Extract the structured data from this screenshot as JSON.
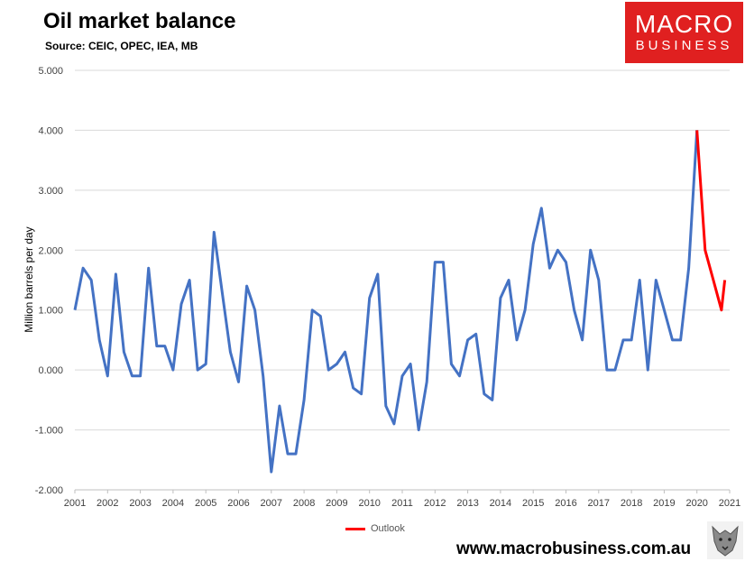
{
  "header": {
    "title": "Oil market balance",
    "subtitle": "Source: CEIC, OPEC, IEA, MB"
  },
  "logo": {
    "line1": "MACRO",
    "line2": "BUSINESS",
    "color": "#e02020"
  },
  "footer": {
    "url": "www.macrobusiness.com.au"
  },
  "chart_data": {
    "type": "line",
    "title": "Oil market balance",
    "ylabel": "Million barrels per day",
    "xlabel": "",
    "ylim": [
      -2,
      5
    ],
    "xlim": [
      2001,
      2021
    ],
    "yticks": [
      "-2.000",
      "-1.000",
      "0.000",
      "1.000",
      "2.000",
      "3.000",
      "4.000",
      "5.000"
    ],
    "xticks": [
      "2001",
      "2002",
      "2003",
      "2004",
      "2005",
      "2006",
      "2007",
      "2008",
      "2009",
      "2010",
      "2011",
      "2012",
      "2013",
      "2014",
      "2015",
      "2016",
      "2017",
      "2018",
      "2019",
      "2020",
      "2021"
    ],
    "grid": true,
    "legend": "bottom-center",
    "series": [
      {
        "color": "#4472c4",
        "x": [
          2001.0,
          2001.25,
          2001.5,
          2001.75,
          2002.0,
          2002.25,
          2002.5,
          2002.75,
          2003.0,
          2003.25,
          2003.5,
          2003.75,
          2004.0,
          2004.25,
          2004.5,
          2004.75,
          2005.0,
          2005.25,
          2005.5,
          2005.75,
          2006.0,
          2006.25,
          2006.5,
          2006.75,
          2007.0,
          2007.25,
          2007.5,
          2007.75,
          2008.0,
          2008.25,
          2008.5,
          2008.75,
          2009.0,
          2009.25,
          2009.5,
          2009.75,
          2010.0,
          2010.25,
          2010.5,
          2010.75,
          2011.0,
          2011.25,
          2011.5,
          2011.75,
          2012.0,
          2012.25,
          2012.5,
          2012.75,
          2013.0,
          2013.25,
          2013.5,
          2013.75,
          2014.0,
          2014.25,
          2014.5,
          2014.75,
          2015.0,
          2015.25,
          2015.5,
          2015.75,
          2016.0,
          2016.25,
          2016.5,
          2016.75,
          2017.0,
          2017.25,
          2017.5,
          2017.75,
          2018.0,
          2018.25,
          2018.5,
          2018.75,
          2019.0,
          2019.25,
          2019.5,
          2019.75,
          2020.0
        ],
        "values": [
          1.0,
          1.7,
          1.5,
          0.5,
          -0.1,
          1.6,
          0.3,
          -0.1,
          -0.1,
          1.7,
          0.4,
          0.4,
          0.0,
          1.1,
          1.5,
          0.0,
          0.1,
          2.3,
          1.3,
          0.3,
          -0.2,
          1.4,
          1.0,
          -0.1,
          -1.7,
          -0.6,
          -1.4,
          -1.4,
          -0.5,
          1.0,
          0.9,
          0.0,
          0.1,
          0.3,
          -0.3,
          -0.4,
          1.2,
          1.6,
          -0.6,
          -0.9,
          -0.1,
          0.1,
          -1.0,
          -0.2,
          1.8,
          1.8,
          0.1,
          -0.1,
          0.5,
          0.6,
          -0.4,
          -0.5,
          1.2,
          1.5,
          0.5,
          1.0,
          2.1,
          2.7,
          1.7,
          2.0,
          1.8,
          1.0,
          0.5,
          2.0,
          1.5,
          0.0,
          0.0,
          0.5,
          0.5,
          1.5,
          0.0,
          1.5,
          1.0,
          0.5,
          0.5,
          1.7,
          4.0
        ]
      },
      {
        "name": "Outlook",
        "color": "#ff0000",
        "x": [
          2020.0,
          2020.25,
          2020.5,
          2020.75,
          2020.85
        ],
        "values": [
          4.0,
          2.0,
          1.5,
          1.0,
          1.5
        ]
      }
    ]
  }
}
